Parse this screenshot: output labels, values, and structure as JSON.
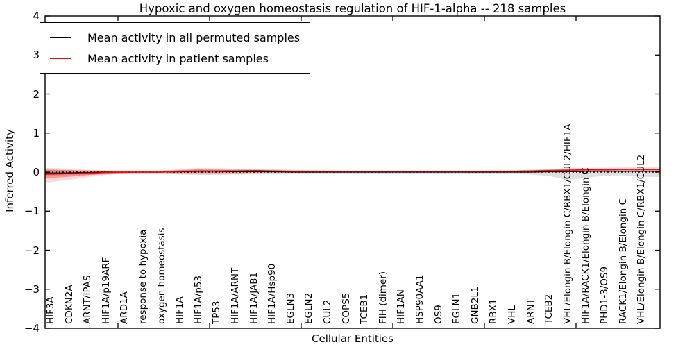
{
  "chart_data": {
    "type": "line",
    "title": "Hypoxic and oxygen homeostasis regulation of HIF-1-alpha -- 218 samples",
    "xlabel": "Cellular Entities",
    "ylabel": "Inferred Activity",
    "ylim": [
      -4,
      4
    ],
    "yticks": [
      4,
      3,
      2,
      1,
      0,
      -1,
      -2,
      -3,
      -4
    ],
    "ytick_labels": [
      "4",
      "3",
      "2",
      "1",
      "0",
      "−1",
      "−2",
      "−3",
      "−4"
    ],
    "grid": false,
    "legend_position": "upper left",
    "zero_line": {
      "y": 0,
      "style": "dotted",
      "color": "#000000"
    },
    "categories": [
      "HIF3A",
      "CDKN2A",
      "ARNT/IPAS",
      "HIF1A/p19ARF",
      "ARD1A",
      "response to hypoxia",
      "oxygen homeostasis",
      "HIF1A",
      "HIF1A/p53",
      "TP53",
      "HIF1A/ARNT",
      "HIF1A/JAB1",
      "HIF1A/Hsp90",
      "EGLN3",
      "EGLN2",
      "CUL2",
      "COPS5",
      "TCEB1",
      "FIH (dimer)",
      "HIF1AN",
      "HSP90AA1",
      "OS9",
      "EGLN1",
      "GNB2L1",
      "RBX1",
      "VHL",
      "ARNT",
      "TCEB2",
      "VHL/Elongin B/Elongin C/RBX1/CUL2/HIF1A",
      "HIF1A/RACK1/Elongin B/Elongin C",
      "PHD1-3/OS9",
      "RACK1/Elongin B/Elongin C",
      "VHL/Elongin B/Elongin C/RBX1/CUL2"
    ],
    "series": [
      {
        "name": "Mean activity in all permuted samples",
        "color": "#000000",
        "line_style": "solid",
        "values": [
          -0.02,
          -0.02,
          -0.01,
          0,
          0,
          0,
          0,
          0.01,
          0.02,
          0.02,
          0.01,
          0.01,
          0.01,
          0,
          0,
          0,
          0,
          0,
          0,
          0,
          0,
          0,
          0,
          0,
          0,
          0,
          0,
          0.01,
          0.01,
          0.02,
          0.02,
          0.02,
          0.02
        ],
        "band": {
          "upper": [
            0.07,
            0.06,
            0.05,
            0.05,
            0.04,
            0.04,
            0.04,
            0.06,
            0.07,
            0.07,
            0.06,
            0.06,
            0.06,
            0.05,
            0.05,
            0.05,
            0.04,
            0.04,
            0.04,
            0.04,
            0.04,
            0.04,
            0.04,
            0.04,
            0.05,
            0.05,
            0.06,
            0.07,
            0.08,
            0.08,
            0.08,
            0.08,
            0.08
          ],
          "lower": [
            -0.09,
            -0.08,
            -0.07,
            -0.06,
            -0.05,
            -0.04,
            -0.04,
            -0.06,
            -0.07,
            -0.07,
            -0.06,
            -0.06,
            -0.06,
            -0.05,
            -0.05,
            -0.05,
            -0.04,
            -0.04,
            -0.04,
            -0.04,
            -0.04,
            -0.04,
            -0.04,
            -0.04,
            -0.05,
            -0.05,
            -0.06,
            -0.1,
            -0.2,
            -0.15,
            -0.09,
            -0.08,
            -0.12
          ],
          "color": "#999999",
          "opacity": 0.3
        }
      },
      {
        "name": "Mean activity in patient samples",
        "color": "#ff0000",
        "line_style": "solid",
        "values": [
          -0.05,
          -0.04,
          -0.03,
          -0.01,
          0,
          0,
          0,
          0.02,
          0.03,
          0.03,
          0.03,
          0.04,
          0.03,
          0.02,
          0.02,
          0.02,
          0.02,
          0.02,
          0.02,
          0.02,
          0.02,
          0.02,
          0.02,
          0.02,
          0.02,
          0.02,
          0.03,
          0.04,
          0.05,
          0.06,
          0.06,
          0.07,
          0.07
        ],
        "band_inner": {
          "upper": [
            0.06,
            0.05,
            0.03,
            0.02,
            0.01,
            0.01,
            0.01,
            0.05,
            0.07,
            0.06,
            0.06,
            0.06,
            0.05,
            0.04,
            0.03,
            0.03,
            0.03,
            0.03,
            0.03,
            0.03,
            0.03,
            0.03,
            0.03,
            0.03,
            0.03,
            0.03,
            0.04,
            0.06,
            0.07,
            0.08,
            0.08,
            0.09,
            0.09
          ],
          "lower": [
            -0.15,
            -0.12,
            -0.08,
            -0.04,
            -0.02,
            -0.01,
            -0.01,
            -0.02,
            -0.02,
            -0.02,
            -0.01,
            0,
            0,
            0,
            0,
            0,
            0,
            0,
            0,
            0,
            0,
            0,
            0,
            0,
            0,
            0,
            0.01,
            0.01,
            0.02,
            0.03,
            0.03,
            0.04,
            0.04
          ],
          "color": "#ff0000",
          "opacity": 0.3
        },
        "band_outer": {
          "upper": [
            0.11,
            0.09,
            0.06,
            0.04,
            0.02,
            0.02,
            0.02,
            0.08,
            0.11,
            0.1,
            0.09,
            0.09,
            0.08,
            0.06,
            0.05,
            0.04,
            0.04,
            0.04,
            0.04,
            0.04,
            0.04,
            0.04,
            0.04,
            0.04,
            0.04,
            0.05,
            0.06,
            0.08,
            0.1,
            0.11,
            0.11,
            0.12,
            0.12
          ],
          "lower": [
            -0.26,
            -0.2,
            -0.13,
            -0.07,
            -0.04,
            -0.02,
            -0.02,
            -0.05,
            -0.05,
            -0.05,
            -0.04,
            -0.02,
            -0.02,
            -0.01,
            -0.01,
            -0.01,
            -0.01,
            -0.01,
            -0.01,
            -0.01,
            -0.01,
            -0.01,
            -0.01,
            -0.01,
            -0.01,
            -0.01,
            0,
            0,
            0,
            0.01,
            0.01,
            0.02,
            0.02
          ],
          "color": "#ff0000",
          "opacity": 0.15
        }
      }
    ]
  }
}
